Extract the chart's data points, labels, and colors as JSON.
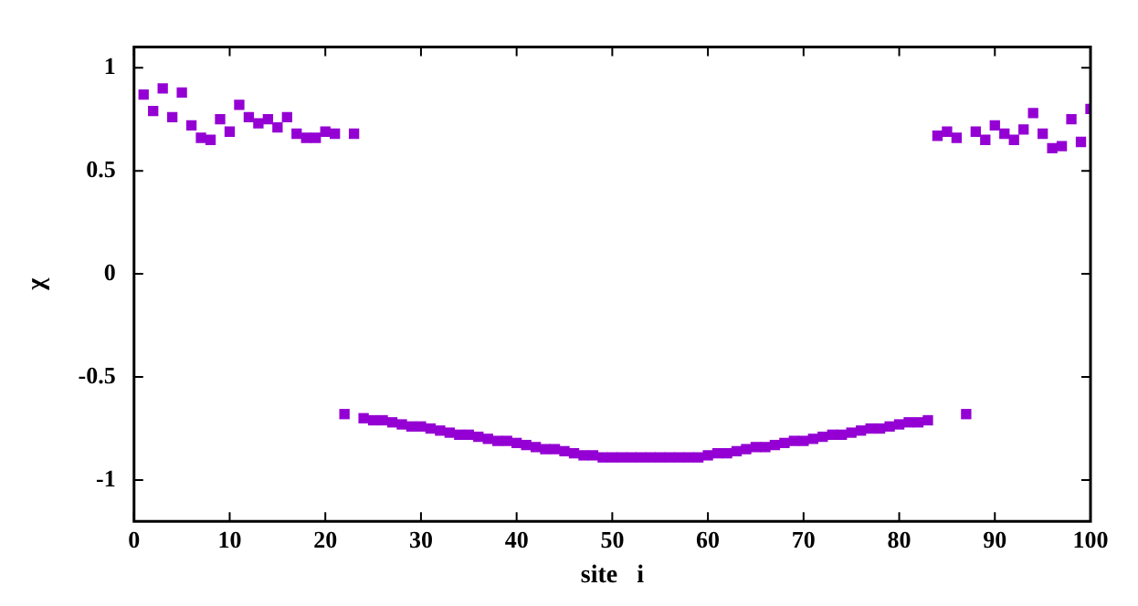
{
  "chart_data": {
    "type": "scatter",
    "xlabel": "site   i",
    "ylabel": "χ",
    "marker": "square",
    "grid": false,
    "legend": false,
    "xlim": [
      0,
      100
    ],
    "xticks": [
      0,
      10,
      20,
      30,
      40,
      50,
      60,
      70,
      80,
      90,
      100
    ],
    "ylim": [
      -1.2,
      1.1
    ],
    "yticks": [
      -1,
      -0.5,
      0,
      0.5,
      1
    ],
    "x": [
      1,
      2,
      3,
      4,
      5,
      6,
      7,
      8,
      9,
      10,
      11,
      12,
      13,
      14,
      15,
      16,
      17,
      18,
      19,
      20,
      21,
      22,
      23,
      24,
      25,
      26,
      27,
      28,
      29,
      30,
      31,
      32,
      33,
      34,
      35,
      36,
      37,
      38,
      39,
      40,
      41,
      42,
      43,
      44,
      45,
      46,
      47,
      48,
      49,
      50,
      51,
      52,
      53,
      54,
      55,
      56,
      57,
      58,
      59,
      60,
      61,
      62,
      63,
      64,
      65,
      66,
      67,
      68,
      69,
      70,
      71,
      72,
      73,
      74,
      75,
      76,
      77,
      78,
      79,
      80,
      81,
      82,
      83,
      84,
      85,
      86,
      87,
      88,
      89,
      90,
      91,
      92,
      93,
      94,
      95,
      96,
      97,
      98,
      99,
      100
    ],
    "series": [
      {
        "color": "#9400d3",
        "values": [
          0.87,
          0.79,
          0.9,
          0.76,
          0.88,
          0.72,
          0.66,
          0.65,
          0.75,
          0.69,
          0.82,
          0.76,
          0.73,
          0.75,
          0.71,
          0.76,
          0.68,
          0.66,
          0.66,
          0.69,
          0.68,
          -0.68,
          0.68,
          -0.7,
          -0.71,
          -0.71,
          -0.72,
          -0.73,
          -0.74,
          -0.74,
          -0.75,
          -0.76,
          -0.77,
          -0.78,
          -0.78,
          -0.79,
          -0.8,
          -0.81,
          -0.81,
          -0.82,
          -0.83,
          -0.84,
          -0.85,
          -0.85,
          -0.86,
          -0.87,
          -0.88,
          -0.88,
          -0.89,
          -0.89,
          -0.89,
          -0.89,
          -0.89,
          -0.89,
          -0.89,
          -0.89,
          -0.89,
          -0.89,
          -0.89,
          -0.88,
          -0.87,
          -0.87,
          -0.86,
          -0.85,
          -0.84,
          -0.84,
          -0.83,
          -0.82,
          -0.81,
          -0.81,
          -0.8,
          -0.79,
          -0.78,
          -0.78,
          -0.77,
          -0.76,
          -0.75,
          -0.75,
          -0.74,
          -0.73,
          -0.72,
          -0.72,
          -0.71,
          0.67,
          0.69,
          0.66,
          -0.68,
          0.69,
          0.65,
          0.72,
          0.68,
          0.65,
          0.7,
          0.78,
          0.68,
          0.61,
          0.62,
          0.75,
          0.64,
          0.8
        ]
      }
    ]
  }
}
